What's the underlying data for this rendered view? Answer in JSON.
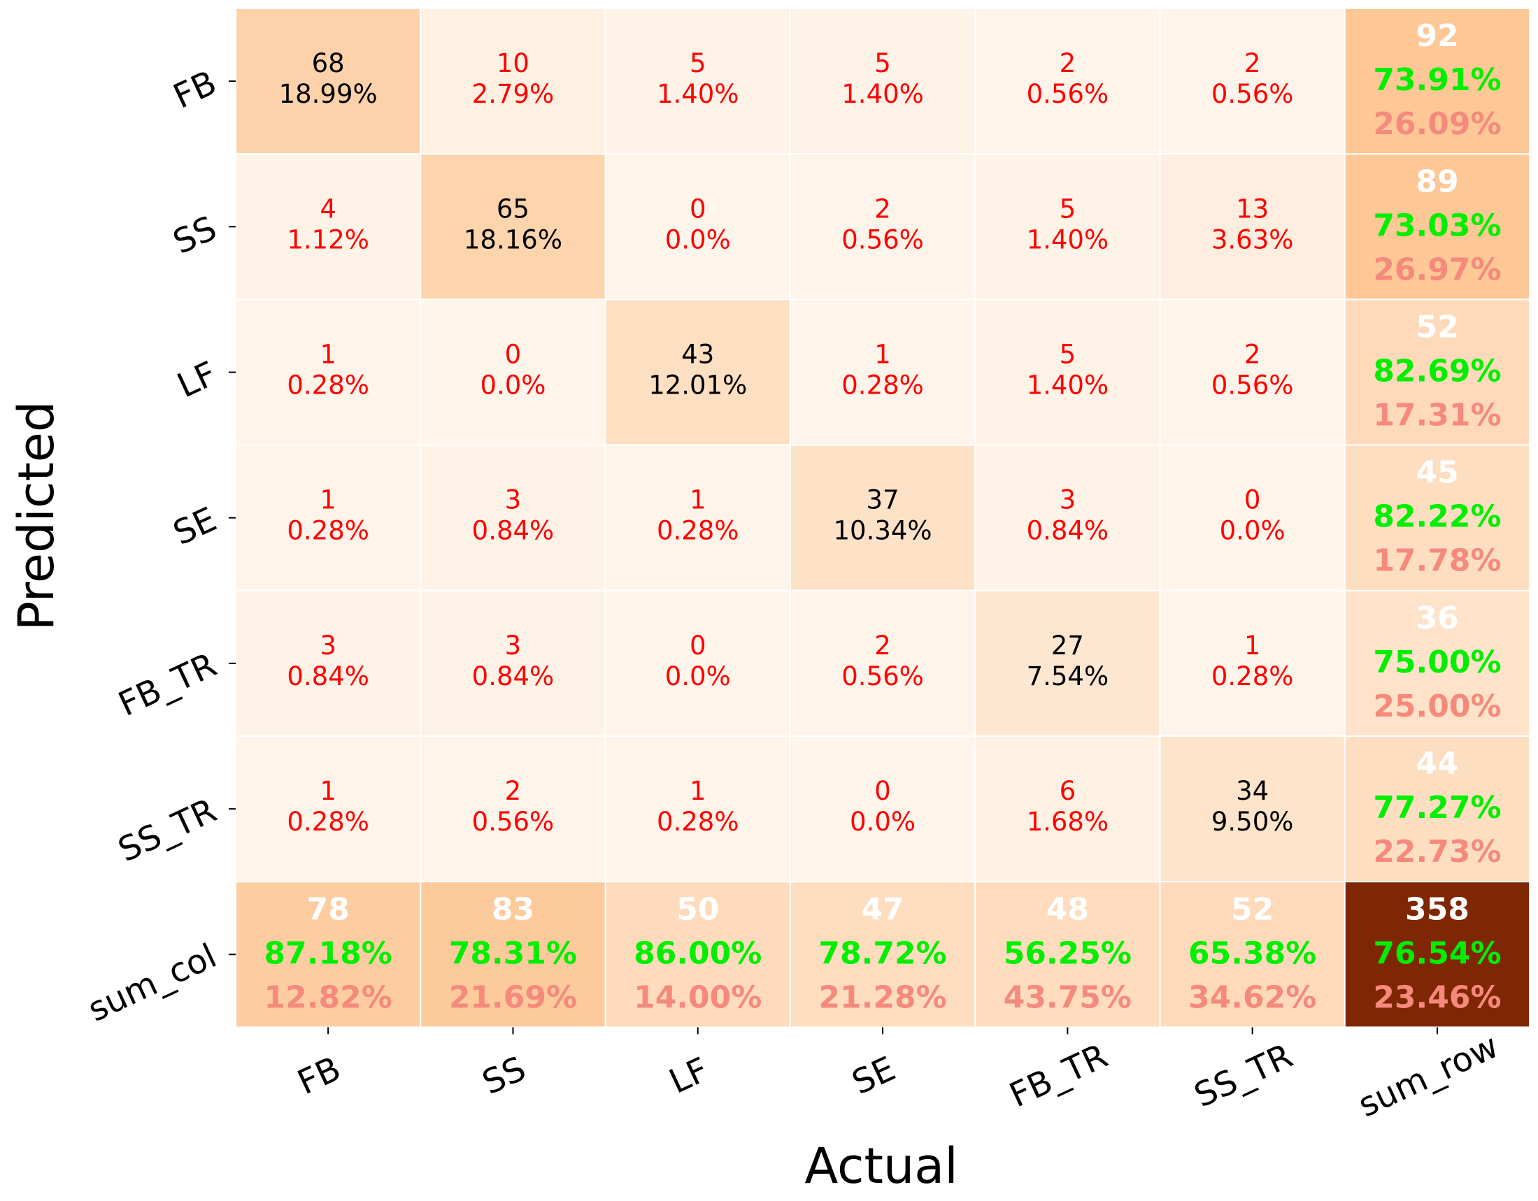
{
  "chart_data": {
    "type": "heatmap",
    "title": "",
    "xlabel": "Actual",
    "ylabel": "Predicted",
    "x_categories": [
      "FB",
      "SS",
      "LF",
      "SE",
      "FB_TR",
      "SS_TR",
      "sum_row"
    ],
    "y_categories": [
      "FB",
      "SS",
      "LF",
      "SE",
      "FB_TR",
      "SS_TR",
      "sum_col"
    ],
    "matrix": [
      [
        68,
        10,
        5,
        5,
        2,
        2
      ],
      [
        4,
        65,
        0,
        2,
        5,
        13
      ],
      [
        1,
        0,
        43,
        1,
        5,
        2
      ],
      [
        1,
        3,
        1,
        37,
        3,
        0
      ],
      [
        3,
        3,
        0,
        2,
        27,
        1
      ],
      [
        1,
        2,
        1,
        0,
        6,
        34
      ]
    ],
    "percents": [
      [
        "18.99%",
        "2.79%",
        "1.40%",
        "1.40%",
        "0.56%",
        "0.56%"
      ],
      [
        "1.12%",
        "18.16%",
        "0.0%",
        "0.56%",
        "1.40%",
        "3.63%"
      ],
      [
        "0.28%",
        "0.0%",
        "12.01%",
        "0.28%",
        "1.40%",
        "0.56%"
      ],
      [
        "0.28%",
        "0.84%",
        "0.28%",
        "10.34%",
        "0.84%",
        "0.0%"
      ],
      [
        "0.84%",
        "0.84%",
        "0.0%",
        "0.56%",
        "7.54%",
        "0.28%"
      ],
      [
        "0.28%",
        "0.56%",
        "0.28%",
        "0.0%",
        "1.68%",
        "9.50%"
      ]
    ],
    "row_sums": [
      {
        "total": 92,
        "correct": "73.91%",
        "error": "26.09%"
      },
      {
        "total": 89,
        "correct": "73.03%",
        "error": "26.97%"
      },
      {
        "total": 52,
        "correct": "82.69%",
        "error": "17.31%"
      },
      {
        "total": 45,
        "correct": "82.22%",
        "error": "17.78%"
      },
      {
        "total": 36,
        "correct": "75.00%",
        "error": "25.00%"
      },
      {
        "total": 44,
        "correct": "77.27%",
        "error": "22.73%"
      }
    ],
    "col_sums": [
      {
        "total": 78,
        "correct": "87.18%",
        "error": "12.82%"
      },
      {
        "total": 83,
        "correct": "78.31%",
        "error": "21.69%"
      },
      {
        "total": 50,
        "correct": "86.00%",
        "error": "14.00%"
      },
      {
        "total": 47,
        "correct": "78.72%",
        "error": "21.28%"
      },
      {
        "total": 48,
        "correct": "56.25%",
        "error": "43.75%"
      },
      {
        "total": 52,
        "correct": "65.38%",
        "error": "34.62%"
      }
    ],
    "overall": {
      "total": 358,
      "correct": "76.54%",
      "error": "23.46%"
    },
    "colors": {
      "off_diagonal_text": "#ff0000",
      "diagonal_text": "#000000",
      "sum_total_text": "#ffffff",
      "correct_text": "#00ee00",
      "error_text": "#f58a7c",
      "overall_cell": "#7f2704",
      "cell_low": "#fff5eb",
      "cell_high": "#fdc796",
      "grid_line": "#ffffff"
    }
  }
}
